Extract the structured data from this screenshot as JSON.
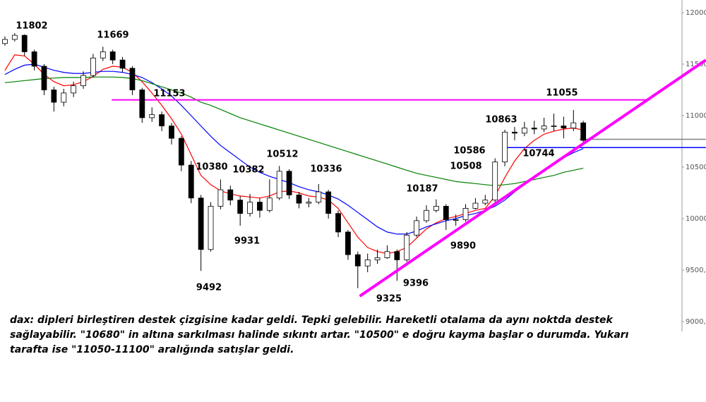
{
  "chart_data": {
    "type": "candlestick",
    "xlim": [
      -0.5,
      69
    ],
    "ylim": [
      9000,
      12123
    ],
    "yticks": [
      12000,
      11500,
      11000,
      {
        "value": 10500,
        "label": "10500,"
      },
      10000,
      {
        "value": 9500,
        "label": "9500,"
      },
      {
        "value": 9000,
        "label": "9000,"
      }
    ],
    "ohlc": {
      "open": [
        11700,
        11740,
        11780,
        11620,
        11480,
        11250,
        11130,
        11220,
        11290,
        11390,
        11560,
        11620,
        11540,
        11460,
        11250,
        10980,
        11010,
        10900,
        10780,
        10520,
        10200,
        9700,
        10120,
        10280,
        10180,
        10050,
        10160,
        10080,
        10200,
        10460,
        10230,
        10150,
        10160,
        10260,
        10050,
        9870,
        9650,
        9540,
        9600,
        9620,
        9680,
        9600,
        9840,
        9980,
        10080,
        10120,
        9990,
        9990,
        10100,
        10150,
        10180,
        10550,
        10840,
        10830,
        10880,
        10870,
        10900,
        10900,
        10880,
        10930
      ],
      "high": [
        11770,
        11802,
        11790,
        11640,
        11500,
        11280,
        11260,
        11330,
        11430,
        11600,
        11669,
        11640,
        11570,
        11480,
        11270,
        11080,
        11040,
        10930,
        10800,
        10560,
        10230,
        10160,
        10380,
        10320,
        10220,
        10240,
        10200,
        10382,
        10512,
        10480,
        10260,
        10200,
        10336,
        10280,
        10080,
        9890,
        9680,
        9660,
        9700,
        9740,
        9700,
        9870,
        10020,
        10130,
        10187,
        10140,
        10040,
        10140,
        10200,
        10230,
        10586,
        10863,
        10890,
        10940,
        10950,
        10980,
        11020,
        10990,
        11055,
        10950
      ],
      "low": [
        11680,
        11720,
        11580,
        11440,
        11200,
        11040,
        11090,
        11180,
        11260,
        11370,
        11530,
        11500,
        11420,
        11200,
        10930,
        10940,
        10850,
        10720,
        10460,
        10150,
        9492,
        9680,
        10090,
        10130,
        9931,
        10020,
        10010,
        10060,
        10180,
        10190,
        10100,
        10110,
        10140,
        10000,
        9820,
        9600,
        9325,
        9480,
        9560,
        9610,
        9396,
        9580,
        9820,
        9960,
        10060,
        9890,
        9930,
        9970,
        10090,
        10130,
        10160,
        10508,
        10760,
        10800,
        10820,
        10840,
        10850,
        10780,
        10850,
        10744
      ],
      "close": [
        11740,
        11780,
        11620,
        11480,
        11250,
        11130,
        11220,
        11290,
        11390,
        11560,
        11620,
        11540,
        11460,
        11250,
        10980,
        11010,
        10900,
        10780,
        10520,
        10200,
        9700,
        10120,
        10280,
        10180,
        10050,
        10160,
        10080,
        10200,
        10460,
        10230,
        10150,
        10160,
        10260,
        10050,
        9870,
        9650,
        9540,
        9600,
        9620,
        9680,
        9600,
        9840,
        9980,
        10080,
        10120,
        9990,
        9990,
        10100,
        10150,
        10180,
        10550,
        10840,
        10830,
        10880,
        10870,
        10900,
        10900,
        10880,
        10930,
        10760
      ]
    },
    "up_color": "#ffffff",
    "down_color": "#000000",
    "moving_averages": [
      {
        "color": "#ff0000",
        "values": [
          11440,
          11590,
          11580,
          11500,
          11400,
          11330,
          11290,
          11300,
          11330,
          11380,
          11450,
          11480,
          11470,
          11420,
          11330,
          11220,
          11100,
          10970,
          10820,
          10620,
          10420,
          10330,
          10270,
          10240,
          10220,
          10210,
          10200,
          10220,
          10260,
          10270,
          10250,
          10220,
          10210,
          10180,
          10100,
          9960,
          9820,
          9720,
          9680,
          9660,
          9680,
          9720,
          9810,
          9900,
          9960,
          10000,
          10020,
          10050,
          10080,
          10100,
          10220,
          10400,
          10560,
          10680,
          10760,
          10820,
          10850,
          10870,
          10880,
          10860
        ]
      },
      {
        "color": "#0000ff",
        "values": [
          11400,
          11450,
          11490,
          11500,
          11470,
          11440,
          11420,
          11410,
          11410,
          11420,
          11430,
          11430,
          11420,
          11400,
          11370,
          11320,
          11260,
          11190,
          11100,
          11000,
          10900,
          10800,
          10710,
          10640,
          10570,
          10500,
          10450,
          10410,
          10380,
          10350,
          10310,
          10280,
          10260,
          10230,
          10190,
          10130,
          10060,
          9990,
          9920,
          9870,
          9850,
          9850,
          9880,
          9920,
          9950,
          9980,
          10000,
          10030,
          10050,
          10080,
          10120,
          10180,
          10260,
          10330,
          10400,
          10460,
          10530,
          10590,
          10640,
          10680
        ]
      },
      {
        "color": "#008000",
        "values": [
          11320,
          11330,
          11340,
          11350,
          11360,
          11365,
          11370,
          11370,
          11370,
          11375,
          11375,
          11375,
          11370,
          11360,
          11340,
          11310,
          11280,
          11250,
          11220,
          11180,
          11130,
          11100,
          11060,
          11020,
          10980,
          10950,
          10920,
          10890,
          10860,
          10830,
          10800,
          10770,
          10740,
          10710,
          10680,
          10650,
          10620,
          10590,
          10560,
          10530,
          10500,
          10470,
          10440,
          10420,
          10400,
          10380,
          10360,
          10350,
          10340,
          10330,
          10320,
          10330,
          10340,
          10360,
          10380,
          10400,
          10420,
          10450,
          10470,
          10490
        ]
      }
    ],
    "levels": [
      {
        "value": 11153,
        "color": "#ff00ff",
        "from": 10.9,
        "to": 65.8
      },
      {
        "value": 10690,
        "color": "#0000ff",
        "from": 51.2,
        "to": 71.5
      },
      {
        "value": 10770,
        "color": "#808080",
        "from": 58.6,
        "to": 71.5
      }
    ],
    "trendline": {
      "color": "#ff00ff",
      "from": [
        36.2,
        9247
      ],
      "to": [
        71.5,
        11540
      ]
    },
    "annotations": [
      11802,
      11669,
      11055,
      10863,
      10586,
      10744,
      10508,
      10380,
      10382,
      10512,
      10336,
      10187,
      9931,
      9890,
      9492,
      9396,
      9325
    ],
    "note": "dax: dipleri birleştiren destek çizgisine kadar geldi. Tepki gelebilir. Hareketli otalama da aynı noktda destek sağlayabilir. \"10680\" in altına sarkılması halinde sıkıntı artar. \"10500\" e doğru kayma başlar o durumda. Yukarı tarafta ise \"11050-11100\" aralığında satışlar geldi."
  }
}
